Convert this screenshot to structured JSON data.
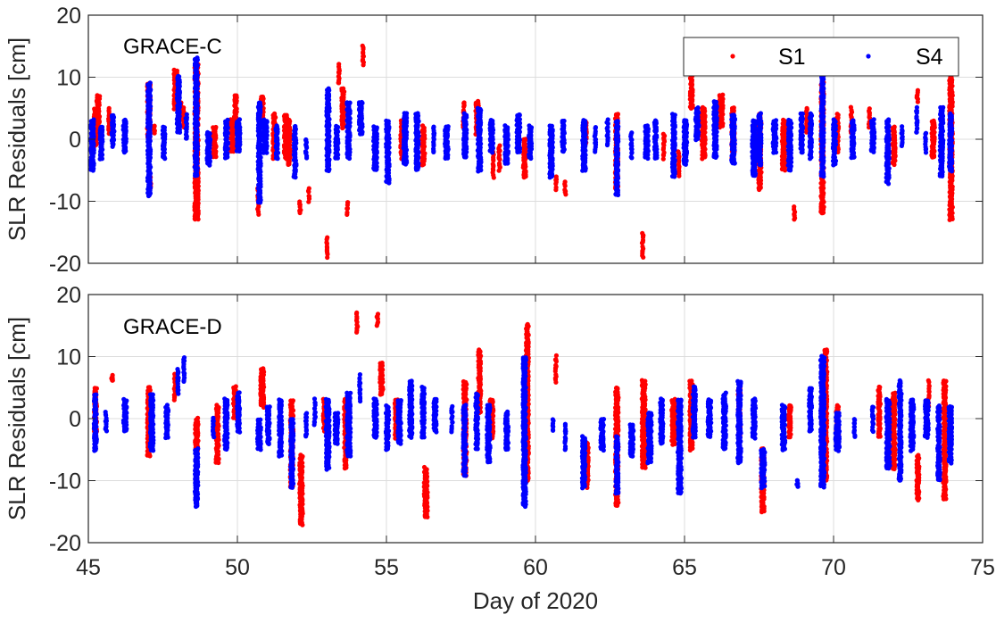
{
  "chart_data": [
    {
      "type": "scatter",
      "panel_label": "GRACE-C",
      "ylabel": "SLR Residuals [cm]",
      "xlim": [
        45,
        75
      ],
      "ylim": [
        -20,
        20
      ],
      "xticks": [
        45,
        50,
        55,
        60,
        65,
        70,
        75
      ],
      "yticks": [
        -20,
        -10,
        0,
        10,
        20
      ],
      "grid": true,
      "legend": {
        "placement": "top-right",
        "orientation": "horizontal",
        "entries": [
          "S1",
          "S4"
        ]
      },
      "series": [
        {
          "name": "S1",
          "color": "#ff0000",
          "clusters": [
            [
              45.2,
              -1,
              5
            ],
            [
              45.3,
              0,
              7
            ],
            [
              45.7,
              1,
              5
            ],
            [
              47.0,
              0,
              9
            ],
            [
              47.1,
              -8,
              -6
            ],
            [
              47.2,
              1,
              2
            ],
            [
              47.9,
              5,
              11
            ],
            [
              48.1,
              3,
              6
            ],
            [
              48.2,
              2,
              5
            ],
            [
              48.6,
              -13,
              12
            ],
            [
              49.2,
              -3,
              2
            ],
            [
              49.8,
              -2,
              3
            ],
            [
              49.9,
              1,
              7
            ],
            [
              50.7,
              -12,
              -8
            ],
            [
              50.8,
              2,
              7
            ],
            [
              51.2,
              -3,
              4
            ],
            [
              51.6,
              -3,
              4
            ],
            [
              51.7,
              -4,
              3
            ],
            [
              52.1,
              -12,
              -10
            ],
            [
              52.4,
              -10,
              -8
            ],
            [
              53.0,
              -19,
              -16
            ],
            [
              53.4,
              9,
              12
            ],
            [
              53.5,
              2,
              8
            ],
            [
              53.7,
              -12,
              -10
            ],
            [
              54.2,
              12,
              15
            ],
            [
              55.5,
              -3,
              3
            ],
            [
              56.2,
              -4,
              2
            ],
            [
              57.6,
              2,
              6
            ],
            [
              58.0,
              1,
              6
            ],
            [
              58.6,
              -6,
              -2
            ],
            [
              58.8,
              -5,
              -1
            ],
            [
              59.6,
              -6,
              0
            ],
            [
              60.7,
              -8,
              -6
            ],
            [
              61.0,
              -9,
              -7
            ],
            [
              61.7,
              -1,
              3
            ],
            [
              62.7,
              -8,
              4
            ],
            [
              63.6,
              -19,
              -15
            ],
            [
              64.3,
              -3,
              1
            ],
            [
              64.8,
              -6,
              -2
            ],
            [
              65.2,
              5,
              10
            ],
            [
              65.6,
              -3,
              5
            ],
            [
              66.2,
              2,
              7
            ],
            [
              66.6,
              -3,
              5
            ],
            [
              67.5,
              -8,
              4
            ],
            [
              68.3,
              -5,
              3
            ],
            [
              68.7,
              -13,
              -11
            ],
            [
              69.1,
              1,
              5
            ],
            [
              69.6,
              -12,
              9
            ],
            [
              70.1,
              -2,
              4
            ],
            [
              70.6,
              1,
              5
            ],
            [
              71.2,
              2,
              5
            ],
            [
              72.0,
              -4,
              2
            ],
            [
              72.8,
              6,
              8
            ],
            [
              73.3,
              -3,
              3
            ],
            [
              73.9,
              -13,
              10
            ]
          ]
        },
        {
          "name": "S4",
          "color": "#0000ff",
          "clusters": [
            [
              45.1,
              -5,
              3
            ],
            [
              45.4,
              -3,
              2
            ],
            [
              45.8,
              -1,
              4
            ],
            [
              46.2,
              -2,
              3
            ],
            [
              47.0,
              -9,
              9
            ],
            [
              47.5,
              -3,
              2
            ],
            [
              48.0,
              1,
              10
            ],
            [
              48.3,
              0,
              4
            ],
            [
              48.6,
              -6,
              13
            ],
            [
              49.0,
              -4,
              1
            ],
            [
              49.6,
              -3,
              3
            ],
            [
              50.0,
              -2,
              3
            ],
            [
              50.7,
              -10,
              6
            ],
            [
              50.9,
              -2,
              3
            ],
            [
              51.3,
              -3,
              2
            ],
            [
              51.9,
              -6,
              2
            ],
            [
              52.3,
              -3,
              0
            ],
            [
              53.0,
              -5,
              8
            ],
            [
              53.3,
              -3,
              2
            ],
            [
              53.7,
              -3,
              6
            ],
            [
              54.1,
              1,
              6
            ],
            [
              54.6,
              -5,
              2
            ],
            [
              55.0,
              -7,
              3
            ],
            [
              55.6,
              -4,
              4
            ],
            [
              56.0,
              -5,
              4
            ],
            [
              56.6,
              -2,
              2
            ],
            [
              57.0,
              -3,
              2
            ],
            [
              57.6,
              -3,
              4
            ],
            [
              58.1,
              -5,
              5
            ],
            [
              58.5,
              -2,
              3
            ],
            [
              59.0,
              -4,
              2
            ],
            [
              59.4,
              -2,
              4
            ],
            [
              59.8,
              -3,
              2
            ],
            [
              60.5,
              -6,
              2
            ],
            [
              60.9,
              -2,
              3
            ],
            [
              61.6,
              -5,
              3
            ],
            [
              62.0,
              -2,
              2
            ],
            [
              62.4,
              -1,
              3
            ],
            [
              62.7,
              -9,
              3
            ],
            [
              63.2,
              -3,
              1
            ],
            [
              63.7,
              -3,
              2
            ],
            [
              64.0,
              -3,
              3
            ],
            [
              64.6,
              -6,
              4
            ],
            [
              65.0,
              -4,
              3
            ],
            [
              65.4,
              0,
              5
            ],
            [
              66.0,
              -3,
              6
            ],
            [
              66.6,
              -4,
              4
            ],
            [
              67.3,
              -6,
              3
            ],
            [
              67.5,
              -4,
              4
            ],
            [
              68.0,
              -2,
              3
            ],
            [
              68.5,
              -5,
              3
            ],
            [
              68.9,
              -2,
              4
            ],
            [
              69.2,
              -3,
              4
            ],
            [
              69.6,
              -6,
              10
            ],
            [
              70.0,
              -4,
              3
            ],
            [
              70.6,
              -3,
              3
            ],
            [
              71.3,
              -2,
              3
            ],
            [
              71.8,
              -7,
              3
            ],
            [
              72.3,
              -1,
              2
            ],
            [
              72.8,
              1,
              5
            ],
            [
              73.1,
              -2,
              1
            ],
            [
              73.6,
              -6,
              5
            ],
            [
              73.9,
              -5,
              4
            ]
          ]
        }
      ]
    },
    {
      "type": "scatter",
      "panel_label": "GRACE-D",
      "xlabel": "Day of 2020",
      "ylabel": "SLR Residuals [cm]",
      "xlim": [
        45,
        75
      ],
      "ylim": [
        -20,
        20
      ],
      "xticks": [
        45,
        50,
        55,
        60,
        65,
        70,
        75
      ],
      "yticks": [
        -20,
        -10,
        0,
        10,
        20
      ],
      "grid": true,
      "series": [
        {
          "name": "S1",
          "color": "#ff0000",
          "clusters": [
            [
              45.2,
              -2,
              5
            ],
            [
              45.8,
              6,
              7
            ],
            [
              47.0,
              -6,
              5
            ],
            [
              47.9,
              3,
              7
            ],
            [
              48.6,
              -5,
              0
            ],
            [
              49.3,
              -7,
              2
            ],
            [
              49.9,
              0,
              5
            ],
            [
              50.8,
              2,
              8
            ],
            [
              51.8,
              -11,
              3
            ],
            [
              52.1,
              -17,
              -6
            ],
            [
              52.9,
              -2,
              3
            ],
            [
              53.6,
              -8,
              3
            ],
            [
              54.0,
              14,
              17
            ],
            [
              54.7,
              15,
              17
            ],
            [
              54.8,
              4,
              9
            ],
            [
              55.3,
              -3,
              3
            ],
            [
              56.3,
              -16,
              -8
            ],
            [
              57.6,
              -9,
              6
            ],
            [
              58.1,
              1,
              11
            ],
            [
              58.5,
              -3,
              3
            ],
            [
              59.7,
              -10,
              15
            ],
            [
              60.7,
              6,
              10
            ],
            [
              61.7,
              -11,
              -4
            ],
            [
              62.7,
              -14,
              5
            ],
            [
              63.6,
              -8,
              6
            ],
            [
              64.6,
              -4,
              3
            ],
            [
              65.2,
              -5,
              6
            ],
            [
              66.8,
              -3,
              5
            ],
            [
              67.6,
              -15,
              -5
            ],
            [
              68.5,
              -3,
              2
            ],
            [
              69.7,
              -10,
              11
            ],
            [
              70.1,
              -4,
              2
            ],
            [
              71.5,
              -3,
              5
            ],
            [
              72.0,
              -8,
              4
            ],
            [
              72.8,
              -13,
              -6
            ],
            [
              73.2,
              2,
              6
            ],
            [
              73.7,
              -13,
              6
            ]
          ]
        },
        {
          "name": "S4",
          "color": "#0000ff",
          "clusters": [
            [
              45.2,
              -5,
              4
            ],
            [
              45.6,
              -2,
              1
            ],
            [
              46.2,
              -2,
              3
            ],
            [
              47.1,
              -5,
              4
            ],
            [
              47.6,
              -3,
              2
            ],
            [
              48.0,
              4,
              8
            ],
            [
              48.2,
              6,
              10
            ],
            [
              48.6,
              -14,
              -5
            ],
            [
              49.2,
              -3,
              0
            ],
            [
              49.6,
              -5,
              3
            ],
            [
              50.0,
              -2,
              4
            ],
            [
              50.7,
              -5,
              0
            ],
            [
              51.0,
              -4,
              2
            ],
            [
              51.4,
              -6,
              3
            ],
            [
              51.8,
              -11,
              0
            ],
            [
              52.3,
              -3,
              1
            ],
            [
              52.6,
              -1,
              3
            ],
            [
              53.0,
              -8,
              3
            ],
            [
              53.3,
              -4,
              1
            ],
            [
              53.7,
              -6,
              4
            ],
            [
              54.1,
              3,
              7
            ],
            [
              54.6,
              -3,
              3
            ],
            [
              55.0,
              -5,
              2
            ],
            [
              55.4,
              -4,
              3
            ],
            [
              55.8,
              -3,
              6
            ],
            [
              56.2,
              -3,
              5
            ],
            [
              56.6,
              -2,
              3
            ],
            [
              57.2,
              -2,
              2
            ],
            [
              57.6,
              -9,
              2
            ],
            [
              58.0,
              -5,
              4
            ],
            [
              58.4,
              -7,
              2
            ],
            [
              59.0,
              -5,
              1
            ],
            [
              59.6,
              -14,
              10
            ],
            [
              60.6,
              -2,
              0
            ],
            [
              61.0,
              -5,
              -1
            ],
            [
              61.6,
              -11,
              -3
            ],
            [
              62.2,
              -5,
              0
            ],
            [
              62.7,
              -12,
              -3
            ],
            [
              63.2,
              -6,
              -1
            ],
            [
              63.8,
              -7,
              1
            ],
            [
              64.2,
              -4,
              3
            ],
            [
              64.8,
              -12,
              3
            ],
            [
              65.3,
              -3,
              5
            ],
            [
              65.8,
              -3,
              3
            ],
            [
              66.3,
              -5,
              4
            ],
            [
              66.8,
              -7,
              6
            ],
            [
              67.3,
              -3,
              3
            ],
            [
              67.6,
              -11,
              -5
            ],
            [
              68.3,
              -5,
              2
            ],
            [
              68.8,
              -11,
              -10
            ],
            [
              69.2,
              -2,
              5
            ],
            [
              69.6,
              -11,
              10
            ],
            [
              70.1,
              -5,
              1
            ],
            [
              70.7,
              -3,
              0
            ],
            [
              71.3,
              -2,
              2
            ],
            [
              71.8,
              -8,
              3
            ],
            [
              72.2,
              -10,
              6
            ],
            [
              72.6,
              -5,
              3
            ],
            [
              73.1,
              -3,
              3
            ],
            [
              73.5,
              -10,
              2
            ],
            [
              73.9,
              -7,
              2
            ]
          ]
        }
      ]
    }
  ]
}
